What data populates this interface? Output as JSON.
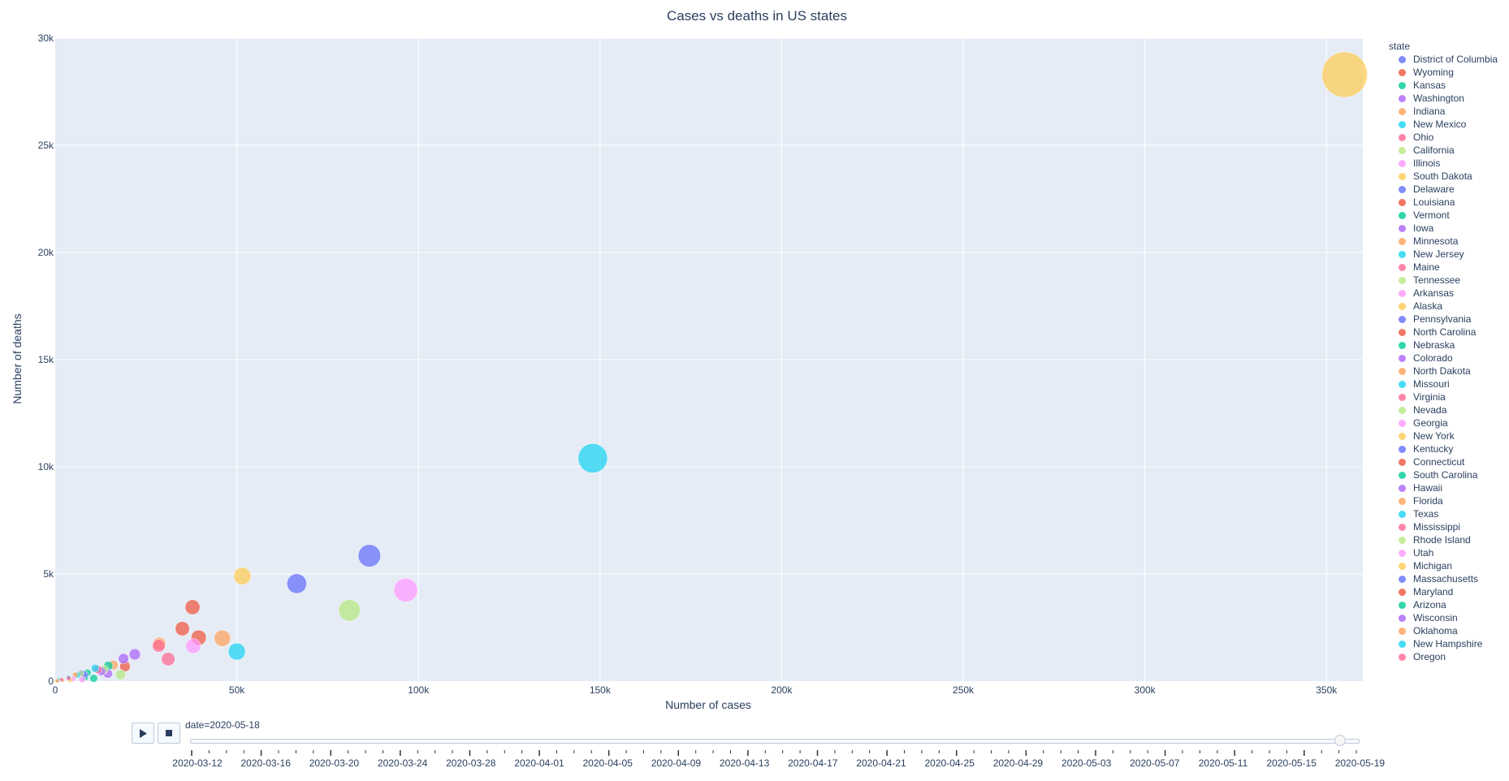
{
  "chart_data": {
    "type": "scatter",
    "title": "Cases vs deaths in US states",
    "xlabel": "Number of cases",
    "ylabel": "Number of deaths",
    "xlim": [
      0,
      360000
    ],
    "ylim": [
      0,
      30000
    ],
    "x_ticks": [
      {
        "value": 0,
        "label": "0"
      },
      {
        "value": 50000,
        "label": "50k"
      },
      {
        "value": 100000,
        "label": "100k"
      },
      {
        "value": 150000,
        "label": "150k"
      },
      {
        "value": 200000,
        "label": "200k"
      },
      {
        "value": 250000,
        "label": "250k"
      },
      {
        "value": 300000,
        "label": "300k"
      },
      {
        "value": 350000,
        "label": "350k"
      }
    ],
    "y_ticks": [
      {
        "value": 0,
        "label": "0"
      },
      {
        "value": 5000,
        "label": "5k"
      },
      {
        "value": 10000,
        "label": "10k"
      },
      {
        "value": 15000,
        "label": "15k"
      },
      {
        "value": 20000,
        "label": "20k"
      },
      {
        "value": 25000,
        "label": "25k"
      },
      {
        "value": 30000,
        "label": "30k"
      }
    ],
    "grid": true,
    "legend_position": "right",
    "legend_title": "state",
    "colors": [
      "#636efa",
      "#EF553B",
      "#00cc96",
      "#ab63fa",
      "#FFA15A",
      "#19d3f3",
      "#FF6692",
      "#B6E880",
      "#FF97FF",
      "#FECB52"
    ],
    "series": [
      {
        "name": "District of Columbia",
        "x": 7100,
        "y": 380
      },
      {
        "name": "Wyoming",
        "x": 750,
        "y": 10
      },
      {
        "name": "Kansas",
        "x": 8200,
        "y": 180
      },
      {
        "name": "Washington",
        "x": 18800,
        "y": 1050
      },
      {
        "name": "Indiana",
        "x": 28700,
        "y": 1750
      },
      {
        "name": "New Mexico",
        "x": 6100,
        "y": 280
      },
      {
        "name": "Ohio",
        "x": 28500,
        "y": 1650
      },
      {
        "name": "California",
        "x": 81000,
        "y": 3300
      },
      {
        "name": "Illinois",
        "x": 96500,
        "y": 4250
      },
      {
        "name": "South Dakota",
        "x": 4100,
        "y": 50
      },
      {
        "name": "Delaware",
        "x": 8100,
        "y": 300
      },
      {
        "name": "Louisiana",
        "x": 35000,
        "y": 2450
      },
      {
        "name": "Vermont",
        "x": 950,
        "y": 55
      },
      {
        "name": "Iowa",
        "x": 14500,
        "y": 350
      },
      {
        "name": "Minnesota",
        "x": 16000,
        "y": 750
      },
      {
        "name": "New Jersey",
        "x": 148000,
        "y": 10400
      },
      {
        "name": "Maine",
        "x": 1700,
        "y": 70
      },
      {
        "name": "Tennessee",
        "x": 18000,
        "y": 300
      },
      {
        "name": "Arkansas",
        "x": 4900,
        "y": 105
      },
      {
        "name": "Alaska",
        "x": 400,
        "y": 10
      },
      {
        "name": "Pennsylvania",
        "x": 66500,
        "y": 4550
      },
      {
        "name": "North Carolina",
        "x": 19200,
        "y": 690
      },
      {
        "name": "Nebraska",
        "x": 10600,
        "y": 130
      },
      {
        "name": "Colorado",
        "x": 21900,
        "y": 1250
      },
      {
        "name": "North Dakota",
        "x": 2000,
        "y": 45
      },
      {
        "name": "Missouri",
        "x": 11000,
        "y": 600
      },
      {
        "name": "Virginia",
        "x": 31100,
        "y": 1030
      },
      {
        "name": "Nevada",
        "x": 7000,
        "y": 350
      },
      {
        "name": "Georgia",
        "x": 38000,
        "y": 1640
      },
      {
        "name": "New York",
        "x": 355000,
        "y": 28300
      },
      {
        "name": "Kentucky",
        "x": 7700,
        "y": 340
      },
      {
        "name": "Connecticut",
        "x": 37800,
        "y": 3450
      },
      {
        "name": "South Carolina",
        "x": 8900,
        "y": 390
      },
      {
        "name": "Hawaii",
        "x": 640,
        "y": 17
      },
      {
        "name": "Florida",
        "x": 46000,
        "y": 2000
      },
      {
        "name": "Texas",
        "x": 50000,
        "y": 1380
      },
      {
        "name": "Mississippi",
        "x": 11700,
        "y": 550
      },
      {
        "name": "Rhode Island",
        "x": 13400,
        "y": 540
      },
      {
        "name": "Utah",
        "x": 7400,
        "y": 80
      },
      {
        "name": "Michigan",
        "x": 51500,
        "y": 4900
      },
      {
        "name": "Massachusetts",
        "x": 86500,
        "y": 5850
      },
      {
        "name": "Maryland",
        "x": 39500,
        "y": 2030
      },
      {
        "name": "Arizona",
        "x": 14600,
        "y": 710
      },
      {
        "name": "Wisconsin",
        "x": 12700,
        "y": 460
      },
      {
        "name": "Oklahoma",
        "x": 5500,
        "y": 290
      },
      {
        "name": "New Hampshire",
        "x": 3700,
        "y": 180
      },
      {
        "name": "Oregon",
        "x": 3700,
        "y": 140
      }
    ]
  },
  "animation": {
    "slider_label": "date=2020-05-18",
    "current_fraction": 0.986,
    "ticks": [
      "2020-03-12",
      "2020-03-16",
      "2020-03-20",
      "2020-03-24",
      "2020-03-28",
      "2020-04-01",
      "2020-04-05",
      "2020-04-09",
      "2020-04-13",
      "2020-04-17",
      "2020-04-21",
      "2020-04-25",
      "2020-04-29",
      "2020-05-03",
      "2020-05-07",
      "2020-05-11",
      "2020-05-15",
      "2020-05-19"
    ],
    "play_icon": "play-icon",
    "stop_icon": "stop-icon"
  }
}
